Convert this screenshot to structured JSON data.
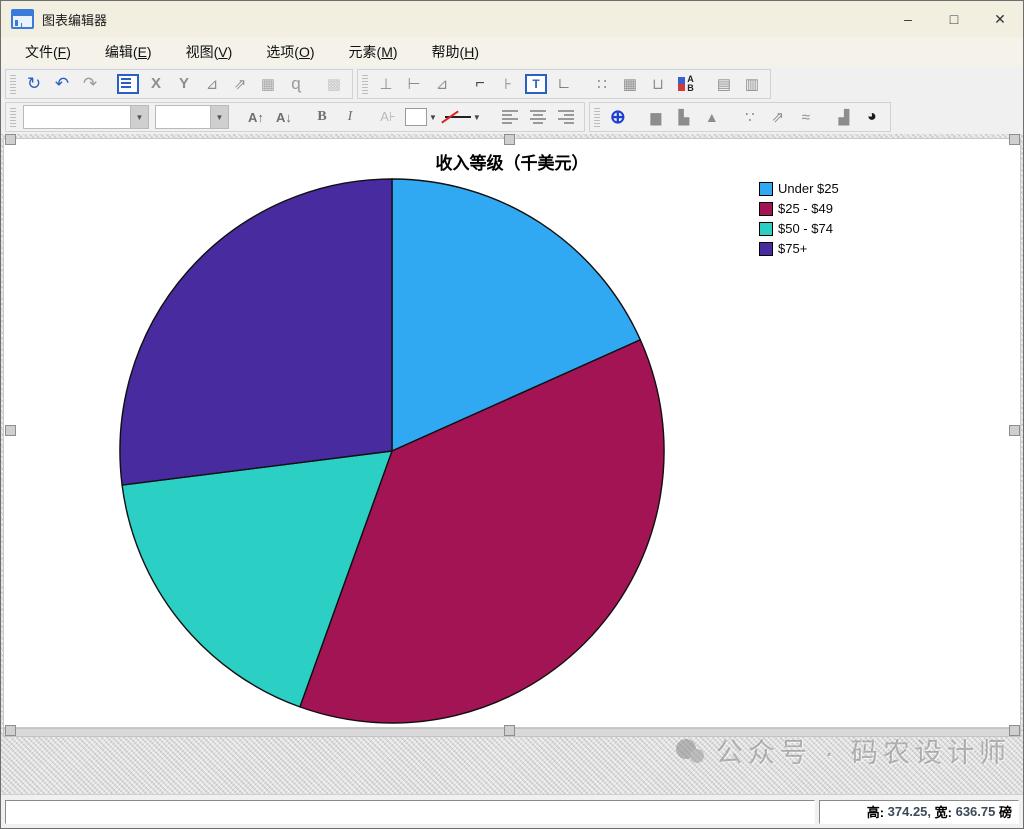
{
  "window": {
    "title": "图表编辑器",
    "controls": {
      "minimize": "–",
      "maximize": "□",
      "close": "✕"
    }
  },
  "menu": {
    "items": [
      {
        "name": "file",
        "pre": "文件(",
        "key": "F",
        "post": ")"
      },
      {
        "name": "edit",
        "pre": "编辑(",
        "key": "E",
        "post": ")"
      },
      {
        "name": "view",
        "pre": "视图(",
        "key": "V",
        "post": ")"
      },
      {
        "name": "options",
        "pre": "选项(",
        "key": "O",
        "post": ")"
      },
      {
        "name": "elements",
        "pre": "元素(",
        "key": "M",
        "post": ")"
      },
      {
        "name": "help",
        "pre": "帮助(",
        "key": "H",
        "post": ")"
      }
    ]
  },
  "toolbar_row1": {
    "groups": [
      {
        "items": [
          {
            "type": "btn",
            "name": "recall-dialog-icon",
            "glyph": "↻",
            "color": "#2a5fc4",
            "size": 17
          },
          {
            "type": "btn",
            "name": "undo-icon",
            "glyph": "↶",
            "color": "#2a5fc4",
            "size": 17
          },
          {
            "type": "btn",
            "name": "redo-icon",
            "glyph": "↷",
            "color": "#9a9a9a",
            "size": 17
          },
          {
            "type": "gap"
          },
          {
            "type": "props",
            "name": "properties-icon"
          },
          {
            "type": "btn",
            "name": "select-x-axis-icon",
            "glyph": "X",
            "color": "#8d8d8d",
            "size": 15,
            "bold": true
          },
          {
            "type": "btn",
            "name": "select-y-axis-icon",
            "glyph": "Y",
            "color": "#8d8d8d",
            "size": 15,
            "bold": true
          },
          {
            "type": "btn",
            "name": "axis-markers-icon",
            "glyph": "⊿",
            "color": "#8d8d8d",
            "size": 15
          },
          {
            "type": "btn",
            "name": "transpose-chart-icon",
            "glyph": "⇗",
            "color": "#8d8d8d",
            "size": 15
          },
          {
            "type": "btn",
            "name": "rotate-3d-icon",
            "glyph": "▦",
            "color": "#a6a6a6",
            "size": 15
          },
          {
            "type": "btn",
            "name": "lasso-select-icon",
            "glyph": "ɋ",
            "color": "#9a9a9a",
            "size": 17
          },
          {
            "type": "gap"
          },
          {
            "type": "btn",
            "name": "snapshot-icon",
            "glyph": "▩",
            "color": "#c9c9c9",
            "size": 15
          }
        ]
      },
      {
        "items": [
          {
            "type": "btn",
            "name": "axis-vertical-icon",
            "glyph": "⊥",
            "color": "#8d8d8d",
            "size": 15
          },
          {
            "type": "btn",
            "name": "axis-horizontal-icon",
            "glyph": "⊢",
            "color": "#8d8d8d",
            "size": 15
          },
          {
            "type": "btn",
            "name": "axis-diagonal-icon",
            "glyph": "⊿",
            "color": "#8d8d8d",
            "size": 15
          },
          {
            "type": "gap"
          },
          {
            "type": "btn",
            "name": "frame-top-icon",
            "glyph": "⌐",
            "color": "#444",
            "size": 16,
            "bold": true
          },
          {
            "type": "btn",
            "name": "frame-inner-icon",
            "glyph": "⊦",
            "color": "#8d8d8d",
            "size": 15
          },
          {
            "type": "boxT",
            "name": "title-icon",
            "glyph": "T"
          },
          {
            "type": "btn",
            "name": "footnote-icon",
            "glyph": "∟",
            "color": "#444",
            "size": 15,
            "bold": true
          },
          {
            "type": "gap"
          },
          {
            "type": "btn",
            "name": "grid-minor-icon",
            "glyph": "∷",
            "color": "#8d8d8d",
            "size": 15
          },
          {
            "type": "btn",
            "name": "grid-major-icon",
            "glyph": "▦",
            "color": "#8d8d8d",
            "size": 15
          },
          {
            "type": "btn",
            "name": "axis-ticks-icon",
            "glyph": "⊔",
            "color": "#8d8d8d",
            "size": 15
          },
          {
            "type": "ab",
            "name": "legend-icon",
            "letters": "AB",
            "sq1": "#3a5fd0",
            "sq2": "#d03a3a"
          },
          {
            "type": "gap"
          },
          {
            "type": "btn",
            "name": "row-panel-icon",
            "glyph": "▤",
            "color": "#8d8d8d",
            "size": 15
          },
          {
            "type": "btn",
            "name": "column-panel-icon",
            "glyph": "▥",
            "color": "#8d8d8d",
            "size": 15
          }
        ]
      }
    ]
  },
  "toolbar_row2": {
    "groups": [
      {
        "items": [
          {
            "type": "combo",
            "name": "font-family-combo",
            "width": 100,
            "value": "",
            "placeholder": ""
          },
          {
            "type": "combo",
            "name": "font-size-combo",
            "width": 48,
            "value": "",
            "placeholder": ""
          },
          {
            "type": "gap"
          },
          {
            "type": "btn",
            "name": "font-increase-icon",
            "glyph": "A↑",
            "color": "#6f6f6f",
            "size": 13,
            "bold": true
          },
          {
            "type": "btn",
            "name": "font-decrease-icon",
            "glyph": "A↓",
            "color": "#6f6f6f",
            "size": 13,
            "bold": true
          },
          {
            "type": "gap"
          },
          {
            "type": "btn",
            "name": "bold-icon",
            "glyph": "B",
            "color": "#6f6f6f",
            "size": 14,
            "bold": true,
            "serif": true
          },
          {
            "type": "btn",
            "name": "italic-icon",
            "glyph": "I",
            "color": "#6f6f6f",
            "size": 14,
            "italic": true
          },
          {
            "type": "gap"
          },
          {
            "type": "btn",
            "name": "text-style-icon",
            "glyph": "A⊦",
            "color": "#b9b9b9",
            "size": 13
          },
          {
            "type": "swatch",
            "name": "fill-color-swatch"
          },
          {
            "type": "linestyle",
            "name": "line-style-swatch"
          },
          {
            "type": "gap"
          },
          {
            "type": "align",
            "name": "align-left-icon",
            "dir": "l"
          },
          {
            "type": "align",
            "name": "align-center-icon",
            "dir": "c"
          },
          {
            "type": "align",
            "name": "align-right-icon",
            "dir": "r"
          }
        ]
      },
      {
        "items": [
          {
            "type": "btn",
            "name": "data-label-mode-icon",
            "glyph": "⊕",
            "color": "#1d3fd4",
            "size": 19,
            "bold": true
          },
          {
            "type": "gap"
          },
          {
            "type": "btn",
            "name": "bar-chart-icon",
            "glyph": "▆",
            "color": "#8d8d8d",
            "size": 14
          },
          {
            "type": "btn",
            "name": "clustered-bar-icon",
            "glyph": "▙",
            "color": "#8d8d8d",
            "size": 14
          },
          {
            "type": "btn",
            "name": "area-chart-icon",
            "glyph": "▲",
            "color": "#8d8d8d",
            "size": 14
          },
          {
            "type": "gap"
          },
          {
            "type": "btn",
            "name": "scatter-icon",
            "glyph": "∵",
            "color": "#8d8d8d",
            "size": 15
          },
          {
            "type": "btn",
            "name": "fit-line-icon",
            "glyph": "⇗",
            "color": "#8d8d8d",
            "size": 15
          },
          {
            "type": "btn",
            "name": "line-chart-icon",
            "glyph": "≈",
            "color": "#8d8d8d",
            "size": 15
          },
          {
            "type": "gap"
          },
          {
            "type": "btn",
            "name": "histogram-icon",
            "glyph": "▟",
            "color": "#8d8d8d",
            "size": 14
          },
          {
            "type": "btn",
            "name": "pie-chart-icon",
            "glyph": "◕",
            "color": "#1a1a1a",
            "size": 16
          }
        ]
      }
    ]
  },
  "chart_data": {
    "type": "pie",
    "title": "收入等级（千美元）",
    "categories": [
      "Under $25",
      "$25 - $49",
      "$50 - $74",
      "$75+"
    ],
    "values": [
      18.3,
      37.2,
      17.5,
      27.0
    ],
    "unit": "percent",
    "colors": [
      "#31A9F2",
      "#A21453",
      "#2CCFC4",
      "#482B9E"
    ],
    "legend_position": "top-right",
    "start_angle_deg": 0,
    "direction": "clockwise",
    "slice_border_color": "#101010"
  },
  "watermark": {
    "text": "公众号 · 码农设计师"
  },
  "status": {
    "left_value": "",
    "height_label": "高:",
    "height_value": " 374.25, ",
    "width_label": "宽:",
    "width_value": " 636.75 ",
    "unit_label": "磅"
  }
}
